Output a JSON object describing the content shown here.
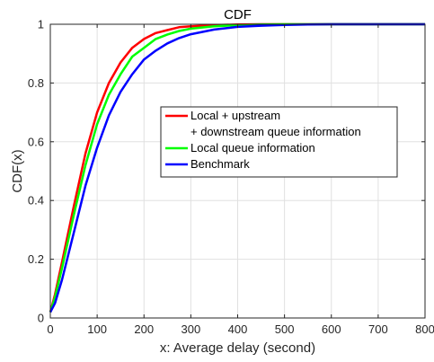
{
  "chart_data": {
    "type": "line",
    "title": "CDF",
    "xlabel": "x: Average delay (second)",
    "ylabel": "CDF(x)",
    "xlim": [
      0,
      800
    ],
    "ylim": [
      0,
      1
    ],
    "xticks": [
      0,
      100,
      200,
      300,
      400,
      500,
      600,
      700,
      800
    ],
    "yticks": [
      0,
      0.2,
      0.4,
      0.6,
      0.8,
      1
    ],
    "xtick_labels": [
      "0",
      "100",
      "200",
      "300",
      "400",
      "500",
      "600",
      "700",
      "800"
    ],
    "ytick_labels": [
      "0",
      "0.2",
      "0.4",
      "0.6",
      "0.8",
      "1"
    ],
    "grid": true,
    "legend_position": "center-right",
    "x": [
      0,
      10,
      25,
      50,
      75,
      100,
      125,
      150,
      175,
      200,
      225,
      250,
      275,
      300,
      350,
      400,
      450,
      500,
      550,
      600,
      650,
      700,
      800
    ],
    "series": [
      {
        "name": "Local + upstream\n+ downstream queue information",
        "color": "#ff0000",
        "values": [
          0.02,
          0.08,
          0.19,
          0.38,
          0.56,
          0.7,
          0.8,
          0.87,
          0.92,
          0.95,
          0.97,
          0.98,
          0.99,
          0.993,
          0.997,
          0.999,
          1.0,
          1.0,
          1.0,
          1.0,
          1.0,
          1.0,
          1.0
        ]
      },
      {
        "name": "Local queue information",
        "color": "#00ff00",
        "values": [
          0.02,
          0.07,
          0.17,
          0.35,
          0.52,
          0.66,
          0.76,
          0.83,
          0.89,
          0.92,
          0.95,
          0.965,
          0.977,
          0.985,
          0.993,
          0.997,
          0.999,
          1.0,
          1.0,
          1.0,
          1.0,
          1.0,
          1.0
        ]
      },
      {
        "name": "Benchmark",
        "color": "#0000ff",
        "values": [
          0.02,
          0.05,
          0.13,
          0.29,
          0.45,
          0.58,
          0.69,
          0.77,
          0.83,
          0.88,
          0.91,
          0.935,
          0.953,
          0.966,
          0.982,
          0.991,
          0.995,
          0.998,
          0.999,
          1.0,
          1.0,
          1.0,
          1.0
        ]
      }
    ]
  }
}
